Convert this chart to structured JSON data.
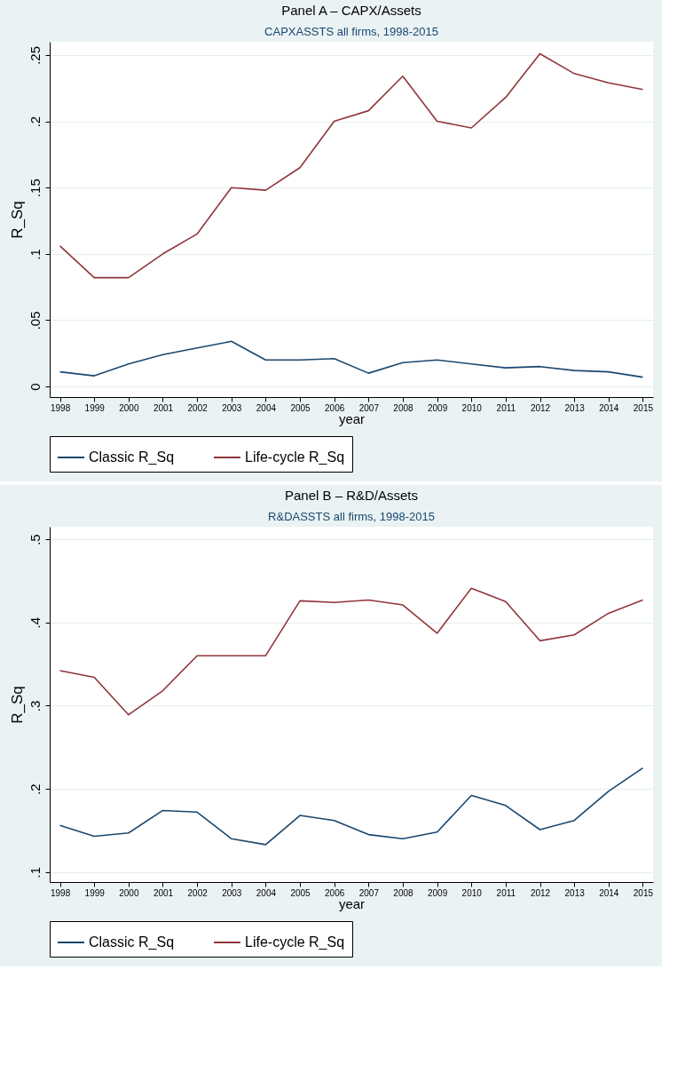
{
  "chart_data": [
    {
      "type": "line",
      "title": "Panel A – CAPX/Assets",
      "subtitle": "CAPXASSTS all firms, 1998-2015",
      "xlabel": "year",
      "ylabel": "R_Sq",
      "x": [
        1998,
        1999,
        2000,
        2001,
        2002,
        2003,
        2004,
        2005,
        2006,
        2007,
        2008,
        2009,
        2010,
        2011,
        2012,
        2013,
        2014,
        2015
      ],
      "series": [
        {
          "name": "Classic R_Sq",
          "color": "#1a476f",
          "values": [
            0.011,
            0.008,
            0.017,
            0.024,
            0.029,
            0.034,
            0.02,
            0.02,
            0.021,
            0.01,
            0.018,
            0.02,
            0.017,
            0.014,
            0.015,
            0.012,
            0.011,
            0.007
          ]
        },
        {
          "name": "Life-cycle R_Sq",
          "color": "#90353b",
          "values": [
            0.106,
            0.082,
            0.082,
            0.1,
            0.115,
            0.15,
            0.148,
            0.165,
            0.2,
            0.208,
            0.234,
            0.2,
            0.195,
            0.218,
            0.251,
            0.236,
            0.229,
            0.224
          ]
        }
      ],
      "xlim": [
        1997.7,
        2015.3
      ],
      "xticks": [
        1998,
        1999,
        2000,
        2001,
        2002,
        2003,
        2004,
        2005,
        2006,
        2007,
        2008,
        2009,
        2010,
        2011,
        2012,
        2013,
        2014,
        2015
      ],
      "ylim": [
        -0.008,
        0.26
      ],
      "yticks": [
        {
          "value": 0,
          "label": "0"
        },
        {
          "value": 0.05,
          "label": ".05"
        },
        {
          "value": 0.1,
          "label": ".1"
        },
        {
          "value": 0.15,
          "label": ".15"
        },
        {
          "value": 0.2,
          "label": ".2"
        },
        {
          "value": 0.25,
          "label": ".25"
        }
      ],
      "grid": "y",
      "legend": "bottom",
      "line_style": "solid"
    },
    {
      "type": "line",
      "title": "Panel B – R&D/Assets",
      "subtitle": "R&DASSTS all firms, 1998-2015",
      "xlabel": "year",
      "ylabel": "R_Sq",
      "x": [
        1998,
        1999,
        2000,
        2001,
        2002,
        2003,
        2004,
        2005,
        2006,
        2007,
        2008,
        2009,
        2010,
        2011,
        2012,
        2013,
        2014,
        2015
      ],
      "series": [
        {
          "name": "Classic R_Sq",
          "color": "#1a476f",
          "values": [
            0.156,
            0.143,
            0.147,
            0.174,
            0.172,
            0.14,
            0.133,
            0.168,
            0.162,
            0.145,
            0.14,
            0.148,
            0.192,
            0.18,
            0.151,
            0.162,
            0.197,
            0.225
          ]
        },
        {
          "name": "Life-cycle R_Sq",
          "color": "#90353b",
          "values": [
            0.342,
            0.334,
            0.289,
            0.318,
            0.36,
            0.36,
            0.36,
            0.426,
            0.424,
            0.427,
            0.421,
            0.387,
            0.441,
            0.425,
            0.378,
            0.385,
            0.411,
            0.427
          ]
        }
      ],
      "xlim": [
        1997.7,
        2015.3
      ],
      "xticks": [
        1998,
        1999,
        2000,
        2001,
        2002,
        2003,
        2004,
        2005,
        2006,
        2007,
        2008,
        2009,
        2010,
        2011,
        2012,
        2013,
        2014,
        2015
      ],
      "ylim": [
        0.088,
        0.515
      ],
      "yticks": [
        {
          "value": 0.1,
          "label": ".1"
        },
        {
          "value": 0.2,
          "label": ".2"
        },
        {
          "value": 0.3,
          "label": ".3"
        },
        {
          "value": 0.4,
          "label": ".4"
        },
        {
          "value": 0.5,
          "label": ".5"
        }
      ],
      "grid": "y",
      "legend": "bottom",
      "line_style": "solid"
    }
  ]
}
